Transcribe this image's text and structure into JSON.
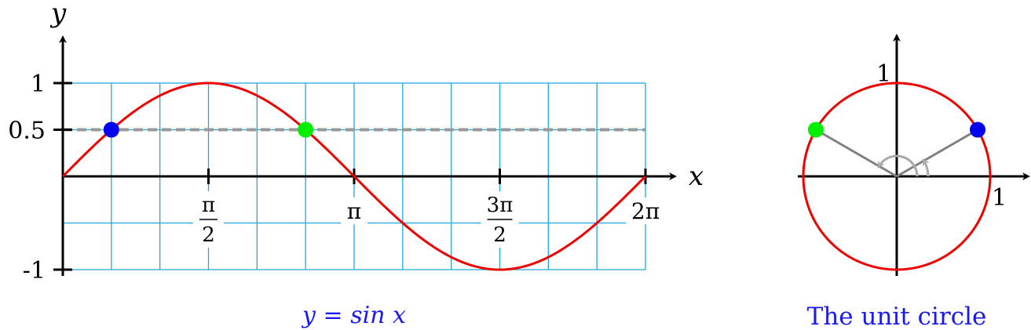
{
  "chart_data": [
    {
      "type": "line",
      "function": "sin",
      "caption": "y = sin x",
      "xlabel": "x",
      "ylabel": "y",
      "xlim": [
        0,
        6.2832
      ],
      "ylim": [
        -1,
        1
      ],
      "x_ticks": [
        {
          "value": 1.5708,
          "num": "π",
          "den": "2"
        },
        {
          "value": 3.1416,
          "label": "π"
        },
        {
          "value": 4.7124,
          "num": "3π",
          "den": "2"
        },
        {
          "value": 6.2832,
          "label": "2π"
        }
      ],
      "y_ticks": [
        {
          "value": 1,
          "label": "1"
        },
        {
          "value": 0.5,
          "label": "0.5"
        },
        {
          "value": -1,
          "label": "-1"
        }
      ],
      "reference_line": {
        "y": 0.5,
        "style": "dashed",
        "color": "#999999"
      },
      "grid": true,
      "grid_color": "#1fa9e0",
      "curve_color": "#ee0000",
      "points": [
        {
          "x": 0.5236,
          "y": 0.5,
          "color": "#0000ee"
        },
        {
          "x": 2.618,
          "y": 0.5,
          "color": "#00ee00"
        }
      ]
    },
    {
      "type": "scatter",
      "caption": "The unit circle",
      "xlim": [
        -1,
        1
      ],
      "ylim": [
        -1,
        1
      ],
      "x_ticks": [
        {
          "value": 1,
          "label": "1"
        }
      ],
      "y_ticks": [
        {
          "value": 1,
          "label": "1"
        }
      ],
      "circle_color": "#ee0000",
      "points": [
        {
          "x": 0.866,
          "y": 0.5,
          "color": "#0000ee"
        },
        {
          "x": -0.866,
          "y": 0.5,
          "color": "#00ee00"
        }
      ]
    }
  ],
  "colors": {
    "axis": "#000000",
    "caption": "#1a1aee",
    "radius": "#808080",
    "arc": "#aaaaaa"
  }
}
